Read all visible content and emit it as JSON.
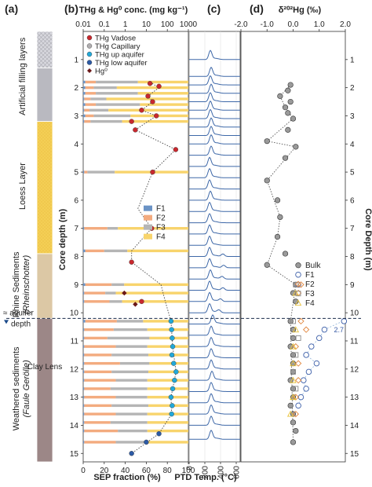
{
  "panels": {
    "a": {
      "label": "(a)"
    },
    "b": {
      "label": "(b)"
    },
    "c": {
      "label": "(c)"
    },
    "d": {
      "label": "(d)"
    }
  },
  "titles": {
    "conc_axis": "THg & Hg⁰ conc. (mg kg⁻¹)",
    "iso_axis": "δ²⁰²Hg (‰)",
    "sep_axis": "SEP fraction (%)",
    "ptd_axis": "PTD Temp. (°C)",
    "depth_left": "Core depth (m)",
    "depth_right": "Core Depth (m)"
  },
  "lithology": [
    {
      "name": "Artificial filling layers",
      "top": 0.0,
      "bottom": 1.3,
      "color": "#cfcfd6",
      "pattern": "hatch"
    },
    {
      "name": "Artificial filling layers",
      "top": 1.3,
      "bottom": 3.2,
      "color": "#b9b9c0",
      "pattern": "solid"
    },
    {
      "name": "Loess Layer",
      "top": 3.2,
      "bottom": 7.9,
      "color": "#f4cf55",
      "pattern": "dots"
    },
    {
      "name": "Rhine Sediments",
      "name_italic": "(Rheinschotter)",
      "top": 7.9,
      "bottom": 10.2,
      "color": "#dcc8a5",
      "pattern": "solid"
    },
    {
      "name": "Weathered sediments",
      "name_italic": "(Faule Gerölle)",
      "top": 10.2,
      "bottom": 15.3,
      "color": "#9c8787",
      "pattern": "solid"
    }
  ],
  "labels": {
    "aquifer": "aquifer",
    "aquifer_depth": "depth",
    "clay_lens": "Clay Lens",
    "off_scale": "2.7"
  },
  "chart_data": [
    {
      "type": "bar",
      "title": "",
      "xlabel": "SEP fraction (%)",
      "ylabel": "Core depth (m)",
      "xlim": [
        0,
        100
      ],
      "ylim": [
        15.3,
        0
      ],
      "x_ticks": [
        0,
        20,
        40,
        60,
        80,
        100
      ],
      "legend_placement": "center-right",
      "series_names": [
        "F1",
        "F2",
        "F3",
        "F4"
      ],
      "series_colors": [
        "#6b93c5",
        "#f3ab7f",
        "#b5b5b5",
        "#f8d46c"
      ],
      "depths": [
        1.8,
        2.0,
        2.2,
        2.4,
        2.6,
        2.8,
        3.0,
        3.2,
        5.0,
        7.0,
        7.8,
        9.0,
        9.3,
        9.6,
        10.3,
        10.6,
        10.9,
        11.2,
        11.5,
        11.8,
        12.1,
        12.4,
        12.7,
        13.0,
        13.3,
        13.6,
        13.9,
        14.2,
        14.6
      ],
      "fractions": [
        [
          2,
          10,
          40,
          48
        ],
        [
          2,
          8,
          22,
          68
        ],
        [
          2,
          10,
          40,
          48
        ],
        [
          1,
          6,
          15,
          78
        ],
        [
          2,
          10,
          42,
          46
        ],
        [
          1,
          5,
          18,
          76
        ],
        [
          2,
          8,
          35,
          55
        ],
        [
          1,
          6,
          30,
          63
        ],
        [
          1,
          3,
          26,
          70
        ],
        [
          1,
          22,
          10,
          67
        ],
        [
          2,
          18,
          22,
          58
        ],
        [
          2,
          25,
          12,
          61
        ],
        [
          1,
          20,
          10,
          69
        ],
        [
          1,
          24,
          12,
          63
        ],
        [
          2,
          30,
          25,
          43
        ],
        [
          1,
          28,
          32,
          39
        ],
        [
          1,
          22,
          40,
          37
        ],
        [
          1,
          30,
          30,
          39
        ],
        [
          1,
          26,
          35,
          38
        ],
        [
          1,
          34,
          28,
          37
        ],
        [
          1,
          26,
          35,
          38
        ],
        [
          1,
          30,
          30,
          39
        ],
        [
          1,
          25,
          35,
          39
        ],
        [
          1,
          30,
          30,
          39
        ],
        [
          1,
          26,
          35,
          38
        ],
        [
          1,
          30,
          30,
          39
        ],
        [
          1,
          25,
          35,
          39
        ],
        [
          1,
          32,
          28,
          39
        ],
        [
          1,
          30,
          30,
          39
        ]
      ]
    },
    {
      "type": "scatter",
      "xlabel": "THg & Hg⁰ conc. (mg kg⁻¹)",
      "xscale": "log",
      "xlim": [
        0.01,
        1000
      ],
      "x_ticks": [
        "0.01",
        "0.1",
        "1",
        "10",
        "100",
        "1000"
      ],
      "legend_placement": "top-left",
      "series": [
        {
          "name": "THg Vadose",
          "color": "#c8282e",
          "points": [
            [
              1.85,
              15
            ],
            [
              1.95,
              40
            ],
            [
              2.3,
              12
            ],
            [
              2.5,
              20
            ],
            [
              2.8,
              6
            ],
            [
              3.0,
              30
            ],
            [
              3.5,
              3
            ],
            [
              3.2,
              2
            ],
            [
              4.2,
              250
            ],
            [
              5.0,
              20
            ],
            [
              7.0,
              18
            ],
            [
              8.2,
              2
            ],
            [
              9.6,
              6
            ]
          ]
        },
        {
          "name": "THg Capillary",
          "color": "#b0aeb0",
          "points": []
        },
        {
          "name": "THg up aquifer",
          "color": "#22a8d8",
          "points": [
            [
              10.3,
              150
            ],
            [
              10.6,
              160
            ],
            [
              10.9,
              170
            ],
            [
              11.2,
              180
            ],
            [
              11.5,
              165
            ],
            [
              11.8,
              200
            ],
            [
              12.1,
              260
            ],
            [
              12.4,
              220
            ],
            [
              12.7,
              180
            ],
            [
              13.0,
              150
            ],
            [
              13.3,
              170
            ],
            [
              13.6,
              160
            ]
          ]
        },
        {
          "name": "THg low aquifer",
          "color": "#2c5aa5",
          "points": [
            [
              14.3,
              40
            ],
            [
              14.6,
              10
            ],
            [
              15.0,
              2
            ]
          ]
        },
        {
          "name": "Hg⁰",
          "color": "#6b1818",
          "points": [
            [
              9.3,
              0.9
            ],
            [
              9.7,
              3
            ]
          ]
        }
      ],
      "trend_line": [
        [
          1.8,
          15
        ],
        [
          2.0,
          40
        ],
        [
          2.3,
          12
        ],
        [
          2.5,
          20
        ],
        [
          2.8,
          6
        ],
        [
          3.0,
          30
        ],
        [
          3.5,
          3
        ],
        [
          4.2,
          250
        ],
        [
          5.0,
          20
        ],
        [
          6.3,
          4
        ],
        [
          7.0,
          18
        ],
        [
          7.8,
          2
        ],
        [
          8.2,
          2
        ],
        [
          9.0,
          50
        ],
        [
          9.6,
          80
        ],
        [
          10.3,
          150
        ],
        [
          11.2,
          180
        ],
        [
          12.1,
          260
        ],
        [
          13.0,
          150
        ],
        [
          13.6,
          160
        ],
        [
          14.3,
          40
        ],
        [
          15.0,
          2
        ]
      ]
    },
    {
      "type": "line",
      "xlabel": "PTD Temp. (°C)",
      "xlim": [
        0,
        650
      ],
      "x_ticks": [
        0,
        200,
        400,
        600
      ],
      "depths": [
        1.0,
        1.6,
        1.9,
        2.2,
        2.5,
        2.8,
        3.1,
        3.4,
        3.7,
        4.0,
        4.4,
        4.8,
        5.2,
        5.6,
        6.0,
        6.4,
        6.8,
        7.2,
        7.6,
        8.0,
        8.4,
        8.8,
        9.2,
        9.6,
        10.0,
        10.4,
        10.8,
        11.2,
        11.6,
        12.0,
        12.4,
        12.8,
        13.2,
        13.6,
        14.0,
        14.5
      ],
      "peak_temp": [
        270,
        280,
        270,
        280,
        270,
        270,
        270,
        280,
        280,
        280,
        280,
        260,
        260,
        260,
        270,
        260,
        260,
        260,
        260,
        260,
        260,
        270,
        260,
        260,
        260,
        300,
        280,
        280,
        280,
        280,
        290,
        280,
        280,
        280,
        280,
        280
      ],
      "secondary_peak_temp": [
        0,
        0,
        0,
        0,
        0,
        0,
        0,
        0,
        0,
        0,
        0,
        0,
        0,
        0,
        0,
        0,
        0,
        0,
        0,
        430,
        440,
        420,
        430,
        400,
        380,
        0,
        0,
        0,
        0,
        0,
        0,
        0,
        0,
        0,
        0,
        0
      ]
    },
    {
      "type": "scatter",
      "xlabel": "δ²⁰²Hg (‰)",
      "xlim": [
        -2.0,
        2.0
      ],
      "x_ticks": [
        "-2.0",
        "-1.0",
        "0.0",
        "1.0",
        "2.0"
      ],
      "legend_placement": "bottom-right",
      "series": [
        {
          "name": "Bulk",
          "color": "#888888",
          "marker": "circle-filled",
          "points": [
            [
              1.9,
              -0.1
            ],
            [
              2.1,
              -0.2
            ],
            [
              2.3,
              -0.5
            ],
            [
              2.5,
              -0.1
            ],
            [
              2.7,
              -0.3
            ],
            [
              2.9,
              -0.2
            ],
            [
              3.1,
              0.0
            ],
            [
              3.5,
              -0.2
            ],
            [
              3.9,
              -1.0
            ],
            [
              4.1,
              0.1
            ],
            [
              4.5,
              -0.3
            ],
            [
              5.3,
              -1.0
            ],
            [
              6.0,
              -0.6
            ],
            [
              6.6,
              -0.5
            ],
            [
              7.3,
              -0.6
            ],
            [
              7.9,
              -0.3
            ],
            [
              8.3,
              -1.0
            ],
            [
              9.0,
              0.1
            ],
            [
              9.3,
              0.0
            ],
            [
              9.6,
              0.1
            ],
            [
              10.3,
              -0.1
            ],
            [
              10.6,
              0.0
            ],
            [
              10.9,
              0.0
            ],
            [
              11.2,
              -0.1
            ],
            [
              11.5,
              0.0
            ],
            [
              11.8,
              0.0
            ],
            [
              12.1,
              0.0
            ],
            [
              12.4,
              -0.1
            ],
            [
              12.7,
              0.0
            ],
            [
              13.0,
              0.0
            ],
            [
              13.3,
              -0.1
            ],
            [
              13.6,
              0.0
            ],
            [
              13.9,
              0.0
            ],
            [
              14.2,
              0.1
            ],
            [
              14.6,
              0.0
            ]
          ]
        },
        {
          "name": "F1",
          "color": "#3a5da8",
          "marker": "circle-open",
          "points": [
            [
              9.0,
              0.2
            ],
            [
              10.3,
              2.7
            ],
            [
              10.6,
              1.2
            ],
            [
              10.9,
              1.0
            ],
            [
              11.2,
              0.7
            ],
            [
              11.5,
              0.5
            ],
            [
              11.8,
              0.9
            ],
            [
              12.1,
              0.6
            ],
            [
              12.4,
              0.4
            ],
            [
              12.7,
              0.5
            ],
            [
              13.0,
              0.3
            ],
            [
              13.3,
              0.2
            ]
          ]
        },
        {
          "name": "F2",
          "color": "#e0843a",
          "marker": "diamond-open",
          "points": [
            [
              9.0,
              0.3
            ],
            [
              9.3,
              0.2
            ],
            [
              10.3,
              0.3
            ],
            [
              10.6,
              0.5
            ],
            [
              11.2,
              0.1
            ],
            [
              11.8,
              0.2
            ],
            [
              12.4,
              0.2
            ],
            [
              13.0,
              0.1
            ],
            [
              13.6,
              0.1
            ]
          ]
        },
        {
          "name": "F3",
          "color": "#8a8a8a",
          "marker": "square-open",
          "points": [
            [
              9.0,
              0.1
            ],
            [
              10.3,
              0.0
            ],
            [
              10.9,
              0.2
            ],
            [
              11.5,
              0.1
            ],
            [
              12.1,
              0.0
            ],
            [
              12.7,
              0.1
            ]
          ]
        },
        {
          "name": "F4",
          "color": "#e8c23a",
          "marker": "triangle-open",
          "points": [
            [
              9.3,
              0.1
            ],
            [
              10.6,
              0.1
            ],
            [
              11.2,
              0.0
            ],
            [
              11.8,
              0.0
            ],
            [
              12.4,
              0.0
            ],
            [
              13.0,
              0.0
            ],
            [
              13.6,
              -0.1
            ]
          ]
        }
      ],
      "bulk_trend": [
        [
          1.9,
          -0.1
        ],
        [
          2.3,
          -0.5
        ],
        [
          2.7,
          -0.3
        ],
        [
          3.1,
          0.0
        ],
        [
          3.9,
          -1.0
        ],
        [
          4.1,
          0.1
        ],
        [
          5.3,
          -1.0
        ],
        [
          6.6,
          -0.5
        ],
        [
          7.3,
          -0.6
        ],
        [
          8.3,
          -1.0
        ],
        [
          9.0,
          0.1
        ],
        [
          10.3,
          -0.1
        ],
        [
          14.6,
          0.0
        ]
      ]
    }
  ],
  "depth_axis": {
    "range": [
      0,
      15.3
    ],
    "ticks": [
      1,
      2,
      3,
      4,
      5,
      6,
      7,
      8,
      9,
      10,
      11,
      12,
      13,
      14,
      15
    ]
  },
  "aquifer_depth_m": 10.2
}
